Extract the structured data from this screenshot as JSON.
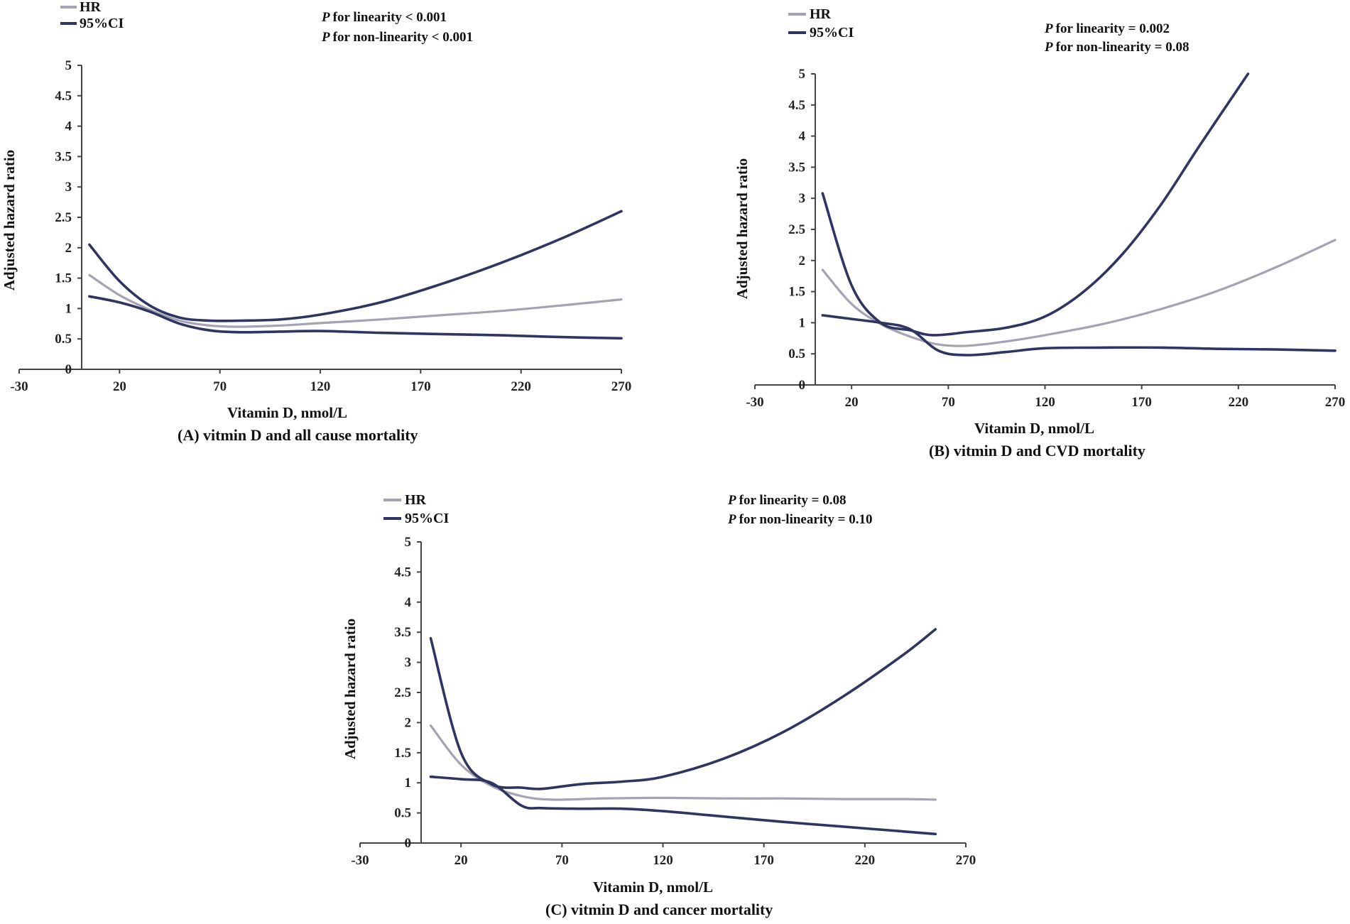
{
  "legend": {
    "hr": "HR",
    "ci": "95%CI"
  },
  "colors": {
    "hr": "#a3a3b5",
    "ci": "#2d3560",
    "axis": "#444444"
  },
  "chart_data": [
    {
      "type": "line",
      "caption": "(A) vitmin D and all cause mortality",
      "xlabel": "Vitamin D, nmol/L",
      "ylabel": "Adjusted hazard  ratio",
      "xlim": [
        -30,
        270
      ],
      "ylim": [
        0,
        5
      ],
      "xticks": [
        -30,
        20,
        70,
        120,
        170,
        220,
        270
      ],
      "yticks": [
        0,
        0.5,
        1,
        1.5,
        2,
        2.5,
        3,
        3.5,
        4,
        4.5,
        5
      ],
      "annotations": [
        "for linearity < 0.001",
        "for non-linearity < 0.001"
      ],
      "series": [
        {
          "name": "HR",
          "x": [
            5,
            20,
            35,
            50,
            65,
            80,
            100,
            120,
            150,
            180,
            210,
            240,
            270
          ],
          "y": [
            1.55,
            1.22,
            0.98,
            0.8,
            0.72,
            0.7,
            0.72,
            0.76,
            0.82,
            0.89,
            0.96,
            1.05,
            1.15
          ]
        },
        {
          "name": "95%CI upper",
          "x": [
            5,
            20,
            35,
            50,
            65,
            80,
            100,
            120,
            150,
            180,
            210,
            240,
            270
          ],
          "y": [
            2.05,
            1.45,
            1.05,
            0.85,
            0.8,
            0.8,
            0.82,
            0.9,
            1.1,
            1.4,
            1.75,
            2.15,
            2.6
          ]
        },
        {
          "name": "95%CI lower",
          "x": [
            5,
            20,
            35,
            50,
            65,
            80,
            100,
            120,
            150,
            180,
            210,
            240,
            270
          ],
          "y": [
            1.2,
            1.1,
            0.95,
            0.75,
            0.64,
            0.61,
            0.62,
            0.63,
            0.6,
            0.58,
            0.56,
            0.53,
            0.51
          ]
        }
      ]
    },
    {
      "type": "line",
      "caption": "(B) vitmin D and CVD mortality",
      "xlabel": "Vitamin D, nmol/L",
      "ylabel": "Adjusted hazard  ratio",
      "xlim": [
        -30,
        270
      ],
      "ylim": [
        0,
        5
      ],
      "xticks": [
        -30,
        20,
        70,
        120,
        170,
        220,
        270
      ],
      "yticks": [
        0,
        0.5,
        1,
        1.5,
        2,
        2.5,
        3,
        3.5,
        4,
        4.5,
        5
      ],
      "annotations": [
        "for linearity = 0.002",
        "for non-linearity = 0.08"
      ],
      "series": [
        {
          "name": "HR",
          "x": [
            5,
            20,
            35,
            50,
            65,
            80,
            100,
            120,
            150,
            180,
            210,
            240,
            270
          ],
          "y": [
            1.85,
            1.3,
            0.98,
            0.78,
            0.65,
            0.63,
            0.7,
            0.8,
            0.98,
            1.22,
            1.52,
            1.9,
            2.33
          ]
        },
        {
          "name": "95%CI upper",
          "x": [
            5,
            20,
            35,
            50,
            62,
            80,
            100,
            120,
            140,
            160,
            180,
            200,
            225
          ],
          "y": [
            3.08,
            1.6,
            1.0,
            0.88,
            0.8,
            0.85,
            0.92,
            1.1,
            1.5,
            2.1,
            2.9,
            3.85,
            5.0
          ]
        },
        {
          "name": "95%CI lower",
          "x": [
            5,
            20,
            35,
            50,
            65,
            80,
            100,
            120,
            150,
            180,
            210,
            240,
            270
          ],
          "y": [
            1.12,
            1.06,
            1.0,
            0.9,
            0.55,
            0.48,
            0.53,
            0.59,
            0.6,
            0.6,
            0.58,
            0.57,
            0.55
          ]
        }
      ]
    },
    {
      "type": "line",
      "caption": "(C) vitmin D and cancer mortality",
      "xlabel": "Vitamin D, nmol/L",
      "ylabel": "Adjusted hazard  ratio",
      "xlim": [
        -30,
        270
      ],
      "ylim": [
        0,
        5
      ],
      "xticks": [
        -30,
        20,
        70,
        120,
        170,
        220,
        270
      ],
      "yticks": [
        0,
        0.5,
        1,
        1.5,
        2,
        2.5,
        3,
        3.5,
        4,
        4.5,
        5
      ],
      "annotations": [
        "for linearity = 0.08",
        "for non-linearity = 0.10"
      ],
      "series": [
        {
          "name": "HR",
          "x": [
            5,
            20,
            35,
            50,
            65,
            90,
            120,
            150,
            180,
            210,
            240,
            255
          ],
          "y": [
            1.95,
            1.3,
            0.95,
            0.78,
            0.72,
            0.74,
            0.75,
            0.74,
            0.74,
            0.73,
            0.73,
            0.72
          ]
        },
        {
          "name": "95%CI upper",
          "x": [
            5,
            20,
            35,
            50,
            60,
            80,
            100,
            120,
            150,
            180,
            210,
            240,
            255
          ],
          "y": [
            3.4,
            1.5,
            0.98,
            0.92,
            0.9,
            0.98,
            1.02,
            1.1,
            1.4,
            1.85,
            2.45,
            3.15,
            3.55
          ]
        },
        {
          "name": "95%CI lower",
          "x": [
            5,
            20,
            35,
            50,
            60,
            80,
            100,
            120,
            150,
            180,
            210,
            240,
            255
          ],
          "y": [
            1.1,
            1.06,
            1.0,
            0.62,
            0.58,
            0.57,
            0.57,
            0.53,
            0.44,
            0.35,
            0.27,
            0.19,
            0.15
          ]
        }
      ]
    }
  ]
}
